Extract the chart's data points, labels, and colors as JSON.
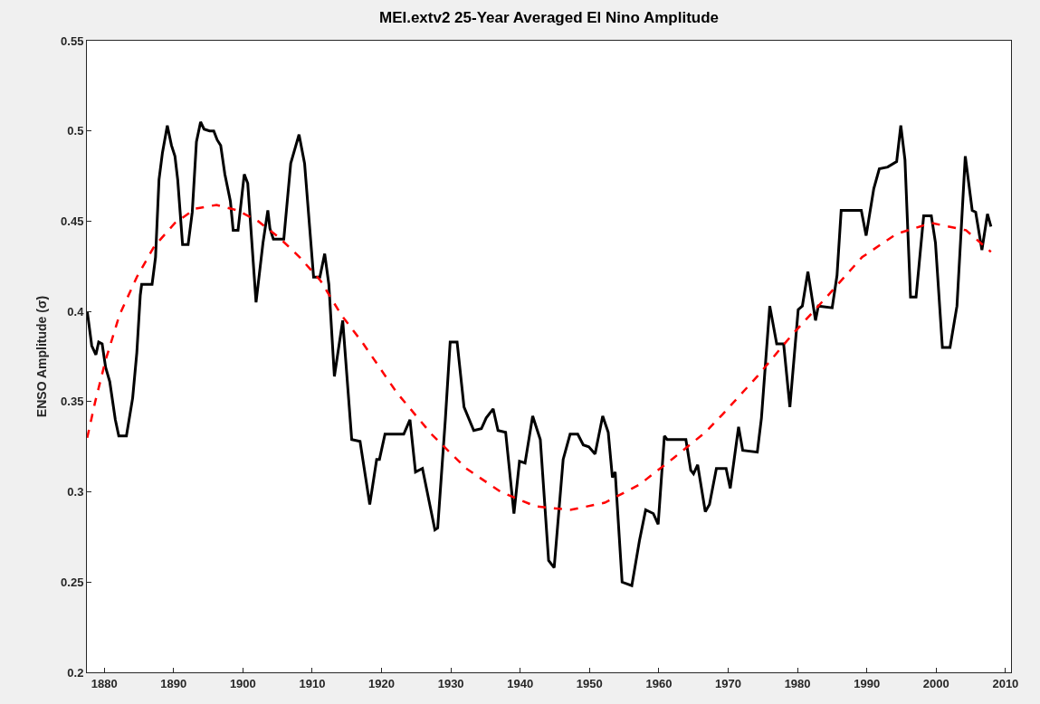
{
  "chart_data": {
    "type": "line",
    "title": "MEI.extv2 25-Year Averaged El Nino Amplitude",
    "ylabel": "ENSO Amplitude (σ)",
    "xlim": [
      1877.5,
      2010.8
    ],
    "xticks": [
      1880,
      1890,
      1900,
      1910,
      1920,
      1930,
      1940,
      1950,
      1960,
      1970,
      1980,
      1990,
      2000,
      2010
    ],
    "ylim": [
      0.2,
      0.55
    ],
    "yticks": [
      0.2,
      0.25,
      0.3,
      0.35,
      0.4,
      0.45,
      0.5,
      0.55
    ],
    "marker": "none",
    "series": [
      {
        "color": "#000000",
        "line_style": "solid",
        "x": [
          1877.55,
          1878.2,
          1878.8,
          1879.2,
          1879.7,
          1880.2,
          1880.8,
          1881.6,
          1882.1,
          1883.2,
          1884.1,
          1884.7,
          1885.2,
          1885.4,
          1886.9,
          1887.4,
          1887.9,
          1888.4,
          1889.1,
          1889.7,
          1890.2,
          1890.6,
          1891.3,
          1892.1,
          1892.7,
          1893.3,
          1893.9,
          1894.4,
          1895.2,
          1895.8,
          1896.3,
          1896.8,
          1897.4,
          1898.2,
          1898.6,
          1899.3,
          1900.2,
          1900.7,
          1901.9,
          1902.9,
          1903.6,
          1903.9,
          1904.4,
          1905.9,
          1906.9,
          1908.1,
          1908.9,
          1910.2,
          1911.1,
          1911.8,
          1912.4,
          1913.2,
          1914.4,
          1915.7,
          1916.9,
          1918.3,
          1919.3,
          1919.7,
          1920.5,
          1923.2,
          1924.1,
          1924.9,
          1925.9,
          1927.7,
          1928.1,
          1929.2,
          1929.9,
          1930.9,
          1931.9,
          1933.3,
          1934.4,
          1935.1,
          1936.1,
          1936.8,
          1937.9,
          1939.1,
          1939.9,
          1940.7,
          1941.8,
          1942.9,
          1944.1,
          1944.9,
          1946.2,
          1947.2,
          1948.3,
          1949.1,
          1949.9,
          1950.8,
          1951.9,
          1952.7,
          1953.3,
          1953.7,
          1954.7,
          1956.1,
          1957.2,
          1958.1,
          1959.2,
          1959.9,
          1960.8,
          1961.2,
          1963.9,
          1964.6,
          1965.0,
          1965.6,
          1966.7,
          1967.3,
          1968.3,
          1969.7,
          1970.3,
          1971.5,
          1972.1,
          1974.2,
          1974.8,
          1976.0,
          1977.0,
          1978.0,
          1978.9,
          1980.1,
          1980.7,
          1981.5,
          1982.6,
          1983.0,
          1985.0,
          1985.7,
          1986.3,
          1989.2,
          1989.9,
          1991.0,
          1991.8,
          1993.0,
          1994.3,
          1994.9,
          1995.5,
          1996.3,
          1997.1,
          1998.2,
          1999.3,
          1999.9,
          2000.9,
          2002.0,
          2003.0,
          2004.2,
          2005.2,
          2005.7,
          2006.6,
          2007.4,
          2007.9
        ],
        "values": [
          0.4,
          0.381,
          0.376,
          0.383,
          0.382,
          0.369,
          0.361,
          0.34,
          0.331,
          0.331,
          0.352,
          0.377,
          0.409,
          0.415,
          0.415,
          0.43,
          0.473,
          0.488,
          0.503,
          0.492,
          0.486,
          0.473,
          0.437,
          0.437,
          0.455,
          0.494,
          0.505,
          0.501,
          0.5,
          0.5,
          0.495,
          0.492,
          0.476,
          0.461,
          0.445,
          0.445,
          0.476,
          0.471,
          0.405,
          0.438,
          0.456,
          0.446,
          0.44,
          0.44,
          0.482,
          0.498,
          0.482,
          0.419,
          0.419,
          0.432,
          0.415,
          0.364,
          0.395,
          0.329,
          0.328,
          0.293,
          0.318,
          0.318,
          0.332,
          0.332,
          0.34,
          0.311,
          0.313,
          0.279,
          0.28,
          0.34,
          0.383,
          0.383,
          0.347,
          0.334,
          0.335,
          0.341,
          0.346,
          0.334,
          0.333,
          0.288,
          0.317,
          0.316,
          0.342,
          0.329,
          0.262,
          0.258,
          0.318,
          0.332,
          0.332,
          0.326,
          0.325,
          0.321,
          0.342,
          0.333,
          0.308,
          0.311,
          0.25,
          0.248,
          0.273,
          0.29,
          0.288,
          0.282,
          0.331,
          0.329,
          0.329,
          0.312,
          0.31,
          0.315,
          0.289,
          0.293,
          0.313,
          0.313,
          0.302,
          0.336,
          0.323,
          0.322,
          0.341,
          0.403,
          0.382,
          0.382,
          0.347,
          0.401,
          0.403,
          0.422,
          0.395,
          0.403,
          0.402,
          0.42,
          0.456,
          0.456,
          0.442,
          0.468,
          0.479,
          0.48,
          0.483,
          0.503,
          0.484,
          0.408,
          0.408,
          0.453,
          0.453,
          0.438,
          0.38,
          0.38,
          0.403,
          0.486,
          0.456,
          0.455,
          0.434,
          0.454,
          0.447
        ]
      },
      {
        "color": "#ff0000",
        "line_style": "dashed",
        "x": [
          1877.55,
          1878.7,
          1880.2,
          1882.2,
          1884.7,
          1887.2,
          1890.2,
          1893.2,
          1896.2,
          1899.2,
          1902.2,
          1905.2,
          1908.2,
          1911.2,
          1914.2,
          1917.2,
          1922.2,
          1927.2,
          1932.2,
          1937.2,
          1942.2,
          1947.2,
          1952.2,
          1957.2,
          1962.2,
          1966.7,
          1969.2,
          1974.2,
          1979.2,
          1984.2,
          1989.3,
          1994.3,
          1999.3,
          2004.3,
          2007.9
        ],
        "values": [
          0.33,
          0.35,
          0.373,
          0.398,
          0.419,
          0.436,
          0.449,
          0.457,
          0.459,
          0.456,
          0.45,
          0.441,
          0.43,
          0.417,
          0.398,
          0.383,
          0.355,
          0.332,
          0.313,
          0.3,
          0.292,
          0.29,
          0.294,
          0.304,
          0.319,
          0.333,
          0.343,
          0.364,
          0.387,
          0.408,
          0.43,
          0.443,
          0.449,
          0.445,
          0.433
        ]
      }
    ]
  }
}
